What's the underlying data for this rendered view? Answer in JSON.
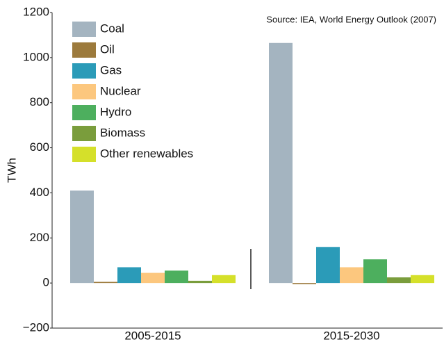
{
  "chart_data": {
    "type": "bar",
    "annotation": "Source: IEA, World Energy Outlook (2007)",
    "y_label": "TWh",
    "categories": [
      "2005-2015",
      "2015-2030"
    ],
    "series": [
      {
        "name": "Coal",
        "color": "#a4b4c0",
        "values": [
          410,
          1065
        ]
      },
      {
        "name": "Oil",
        "color": "#9c7a3c",
        "values": [
          5,
          -5
        ]
      },
      {
        "name": "Gas",
        "color": "#2b9bb8",
        "values": [
          70,
          160
        ]
      },
      {
        "name": "Nuclear",
        "color": "#fcc77e",
        "values": [
          45,
          70
        ]
      },
      {
        "name": "Hydro",
        "color": "#4daf5e",
        "values": [
          55,
          105
        ]
      },
      {
        "name": "Biomass",
        "color": "#7a9d3c",
        "values": [
          10,
          25
        ]
      },
      {
        "name": "Other renewables",
        "color": "#d5e02a",
        "values": [
          35,
          35
        ]
      }
    ],
    "ylim": [
      -200,
      1200
    ],
    "yticks": [
      {
        "value": -200,
        "label": "−200"
      },
      0,
      200,
      400,
      600,
      800,
      1000,
      1200
    ]
  }
}
